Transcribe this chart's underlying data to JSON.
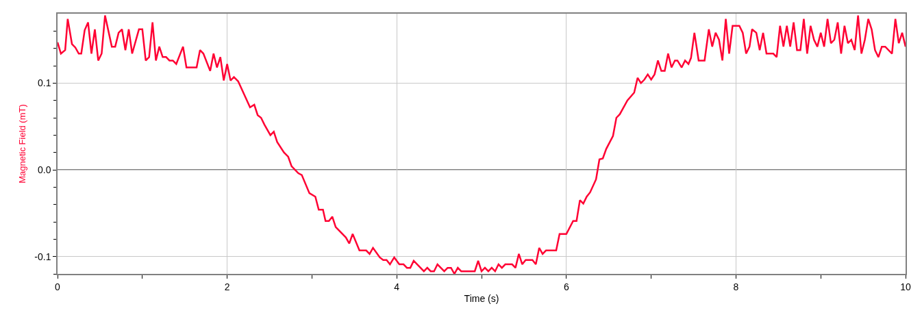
{
  "chart_data": {
    "type": "line",
    "xlabel": "Time (s)",
    "ylabel": "Magnetic Field (mT)",
    "xlim": [
      0,
      10
    ],
    "ylim": [
      -0.12,
      0.18
    ],
    "xticks": [
      0,
      {
        "value": 1,
        "label": null
      },
      2,
      {
        "value": 3,
        "label": null
      },
      4,
      {
        "value": 5,
        "label": null
      },
      6,
      {
        "value": 7,
        "label": null
      },
      8,
      {
        "value": 9,
        "label": null
      },
      10
    ],
    "yticks": [
      {
        "value": -0.12,
        "label": null
      },
      {
        "value": -0.1,
        "label": "-0.1"
      },
      {
        "value": -0.08,
        "label": null
      },
      {
        "value": -0.06,
        "label": null
      },
      {
        "value": -0.04,
        "label": null
      },
      {
        "value": -0.02,
        "label": null
      },
      {
        "value": 0,
        "label": "0.0"
      },
      {
        "value": 0.02,
        "label": null
      },
      {
        "value": 0.04,
        "label": null
      },
      {
        "value": 0.06,
        "label": null
      },
      {
        "value": 0.08,
        "label": null
      },
      {
        "value": 0.1,
        "label": "0.1"
      },
      {
        "value": 0.12,
        "label": null
      },
      {
        "value": 0.14,
        "label": null
      },
      {
        "value": 0.16,
        "label": null
      }
    ],
    "grid": true,
    "line_style": "solid",
    "ref_lines": [
      {
        "axis": "y",
        "value": 0,
        "color": "#808080"
      }
    ],
    "series": [
      {
        "color": "#ff0033",
        "x": [
          0,
          0.04,
          0.09,
          0.12,
          0.17,
          0.21,
          0.25,
          0.28,
          0.32,
          0.36,
          0.4,
          0.44,
          0.48,
          0.52,
          0.56,
          0.64,
          0.68,
          0.72,
          0.76,
          0.8,
          0.84,
          0.88,
          0.96,
          1.0,
          1.04,
          1.08,
          1.12,
          1.16,
          1.2,
          1.24,
          1.28,
          1.32,
          1.36,
          1.4,
          1.48,
          1.52,
          1.64,
          1.68,
          1.72,
          1.8,
          1.84,
          1.88,
          1.92,
          1.96,
          2.0,
          2.04,
          2.08,
          2.13,
          2.27,
          2.32,
          2.36,
          2.4,
          2.44,
          2.51,
          2.55,
          2.59,
          2.67,
          2.72,
          2.76,
          2.84,
          2.88,
          2.97,
          3.04,
          3.08,
          3.13,
          3.16,
          3.2,
          3.24,
          3.28,
          3.4,
          3.44,
          3.48,
          3.56,
          3.64,
          3.68,
          3.72,
          3.8,
          3.84,
          3.88,
          3.92,
          3.97,
          4.03,
          4.08,
          4.12,
          4.16,
          4.2,
          4.32,
          4.36,
          4.4,
          4.44,
          4.48,
          4.56,
          4.6,
          4.64,
          4.68,
          4.72,
          4.76,
          4.92,
          4.96,
          5.0,
          5.04,
          5.08,
          5.12,
          5.16,
          5.2,
          5.24,
          5.28,
          5.36,
          5.4,
          5.44,
          5.48,
          5.52,
          5.6,
          5.64,
          5.68,
          5.72,
          5.76,
          5.88,
          5.92,
          6.0,
          6.08,
          6.12,
          6.16,
          6.2,
          6.24,
          6.28,
          6.35,
          6.39,
          6.43,
          6.47,
          6.55,
          6.59,
          6.63,
          6.72,
          6.8,
          6.84,
          6.88,
          6.92,
          6.96,
          7.0,
          7.04,
          7.08,
          7.12,
          7.16,
          7.2,
          7.24,
          7.28,
          7.31,
          7.36,
          7.4,
          7.44,
          7.47,
          7.51,
          7.56,
          7.63,
          7.68,
          7.72,
          7.76,
          7.8,
          7.84,
          7.88,
          7.92,
          7.96,
          8.04,
          8.08,
          8.12,
          8.16,
          8.19,
          8.24,
          8.28,
          8.32,
          8.36,
          8.44,
          8.48,
          8.52,
          8.56,
          8.6,
          8.64,
          8.68,
          8.72,
          8.76,
          8.8,
          8.84,
          8.88,
          8.92,
          8.96,
          9.0,
          9.04,
          9.08,
          9.12,
          9.16,
          9.2,
          9.24,
          9.28,
          9.32,
          9.36,
          9.4,
          9.44,
          9.48,
          9.52,
          9.56,
          9.6,
          9.64,
          9.68,
          9.72,
          9.76,
          9.84,
          9.88,
          9.92,
          9.96,
          10.0
        ],
        "values": [
          0.147,
          0.134,
          0.138,
          0.174,
          0.145,
          0.141,
          0.134,
          0.134,
          0.161,
          0.17,
          0.134,
          0.162,
          0.126,
          0.134,
          0.178,
          0.142,
          0.142,
          0.158,
          0.162,
          0.138,
          0.162,
          0.134,
          0.162,
          0.162,
          0.126,
          0.13,
          0.17,
          0.126,
          0.142,
          0.13,
          0.13,
          0.126,
          0.126,
          0.122,
          0.142,
          0.118,
          0.118,
          0.138,
          0.134,
          0.114,
          0.134,
          0.118,
          0.13,
          0.103,
          0.122,
          0.103,
          0.107,
          0.102,
          0.072,
          0.075,
          0.063,
          0.06,
          0.052,
          0.04,
          0.044,
          0.032,
          0.02,
          0.015,
          0.004,
          -0.004,
          -0.006,
          -0.027,
          -0.031,
          -0.046,
          -0.046,
          -0.059,
          -0.059,
          -0.054,
          -0.066,
          -0.078,
          -0.085,
          -0.074,
          -0.093,
          -0.093,
          -0.097,
          -0.09,
          -0.101,
          -0.104,
          -0.104,
          -0.109,
          -0.101,
          -0.109,
          -0.109,
          -0.113,
          -0.113,
          -0.105,
          -0.117,
          -0.113,
          -0.117,
          -0.117,
          -0.109,
          -0.117,
          -0.113,
          -0.113,
          -0.12,
          -0.113,
          -0.117,
          -0.117,
          -0.105,
          -0.117,
          -0.113,
          -0.117,
          -0.113,
          -0.117,
          -0.109,
          -0.113,
          -0.109,
          -0.109,
          -0.113,
          -0.097,
          -0.109,
          -0.104,
          -0.104,
          -0.109,
          -0.09,
          -0.097,
          -0.093,
          -0.093,
          -0.074,
          -0.074,
          -0.059,
          -0.059,
          -0.035,
          -0.039,
          -0.031,
          -0.026,
          -0.011,
          0.012,
          0.013,
          0.024,
          0.039,
          0.06,
          0.064,
          0.08,
          0.089,
          0.106,
          0.1,
          0.104,
          0.11,
          0.104,
          0.11,
          0.126,
          0.114,
          0.114,
          0.134,
          0.118,
          0.126,
          0.126,
          0.118,
          0.126,
          0.122,
          0.129,
          0.158,
          0.126,
          0.126,
          0.162,
          0.142,
          0.158,
          0.15,
          0.126,
          0.174,
          0.134,
          0.166,
          0.166,
          0.158,
          0.134,
          0.142,
          0.162,
          0.158,
          0.138,
          0.158,
          0.134,
          0.134,
          0.13,
          0.166,
          0.142,
          0.166,
          0.142,
          0.17,
          0.138,
          0.138,
          0.174,
          0.134,
          0.166,
          0.15,
          0.142,
          0.158,
          0.142,
          0.174,
          0.146,
          0.15,
          0.17,
          0.134,
          0.166,
          0.146,
          0.15,
          0.138,
          0.178,
          0.134,
          0.15,
          0.174,
          0.162,
          0.138,
          0.13,
          0.142,
          0.142,
          0.134,
          0.174,
          0.146,
          0.158,
          0.142
        ]
      }
    ]
  }
}
